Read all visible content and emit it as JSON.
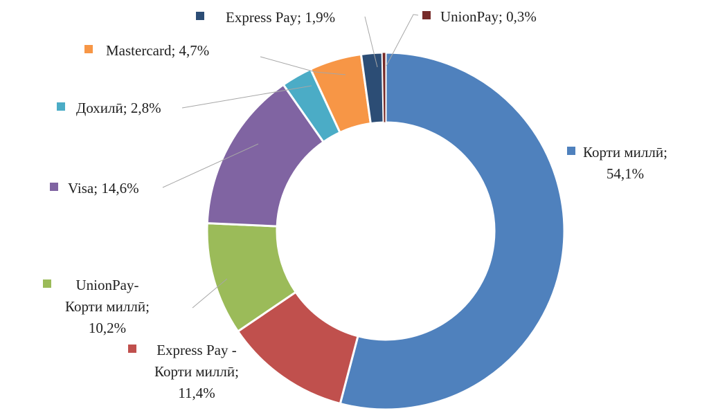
{
  "chart_data": {
    "type": "pie",
    "subtype": "donut",
    "hole_ratio": 0.61,
    "start_angle_deg": 0,
    "direction": "clockwise",
    "unit": "%",
    "decimal_separator": ",",
    "background": "#FFFFFF",
    "leader_line_color": "#A6A6A6",
    "label_text_color": "#1F1F1F",
    "slices": [
      {
        "name": "Корти миллӣ",
        "value": 54.1,
        "display": "54,1%",
        "color": "#4F81BD",
        "label_lines": [
          "Корти миллӣ;",
          "54,1%"
        ]
      },
      {
        "name": "Express Pay - Корти миллӣ",
        "value": 11.4,
        "display": "11,4%",
        "color": "#C0504D",
        "label_lines": [
          "Express Pay -",
          "Корти миллӣ;",
          "11,4%"
        ]
      },
      {
        "name": "UnionPay-Корти миллӣ",
        "value": 10.2,
        "display": "10,2%",
        "color": "#9BBB59",
        "label_lines": [
          "UnionPay-",
          "Корти миллӣ;",
          "10,2%"
        ]
      },
      {
        "name": "Visa",
        "value": 14.6,
        "display": "14,6%",
        "color": "#8064A2",
        "label_lines": [
          "Visa; 14,6%"
        ]
      },
      {
        "name": "Дохилӣ",
        "value": 2.8,
        "display": "2,8%",
        "color": "#4BACC6",
        "label_lines": [
          "Дохилӣ; 2,8%"
        ]
      },
      {
        "name": "Mastercard",
        "value": 4.7,
        "display": "4,7%",
        "color": "#F79646",
        "label_lines": [
          "Mastercard; 4,7%"
        ]
      },
      {
        "name": "Express Pay",
        "value": 1.9,
        "display": "1,9%",
        "color": "#2C4D75",
        "label_lines": [
          "Express Pay; 1,9%"
        ]
      },
      {
        "name": "UnionPay",
        "value": 0.3,
        "display": "0,3%",
        "color": "#772C2A",
        "label_lines": [
          "UnionPay; 0,3%"
        ]
      }
    ]
  }
}
